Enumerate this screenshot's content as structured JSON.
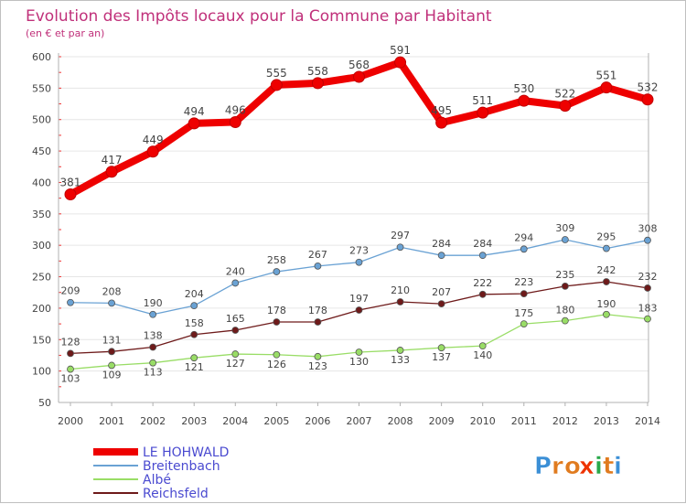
{
  "chart_data": {
    "type": "line",
    "title": "Evolution des Impôts locaux pour la Commune par Habitant",
    "subtitle": "(en € et par an)",
    "xlabel": "",
    "ylabel": "",
    "ylim": [
      50,
      600
    ],
    "yticks": [
      50,
      100,
      150,
      200,
      250,
      300,
      350,
      400,
      450,
      500,
      550,
      600
    ],
    "categories": [
      "2000",
      "2001",
      "2002",
      "2003",
      "2004",
      "2005",
      "2006",
      "2007",
      "2008",
      "2009",
      "2010",
      "2011",
      "2012",
      "2013",
      "2014"
    ],
    "series": [
      {
        "name": "LE HOHWALD",
        "color": "#ee0000",
        "values": [
          381,
          417,
          449,
          494,
          496,
          555,
          558,
          568,
          591,
          495,
          511,
          530,
          522,
          551,
          532
        ]
      },
      {
        "name": "Breitenbach",
        "color": "#6aa2d4",
        "values": [
          209,
          208,
          190,
          204,
          240,
          258,
          267,
          273,
          297,
          284,
          284,
          294,
          309,
          295,
          308
        ]
      },
      {
        "name": "Albé",
        "color": "#99dd66",
        "values": [
          103,
          109,
          113,
          121,
          127,
          126,
          123,
          130,
          133,
          137,
          140,
          175,
          180,
          190,
          183
        ]
      },
      {
        "name": "Reichsfeld",
        "color": "#6e1a1a",
        "values": [
          128,
          131,
          138,
          158,
          165,
          178,
          178,
          197,
          210,
          207,
          222,
          223,
          235,
          242,
          232
        ]
      }
    ],
    "legend_position": "bottom-left"
  },
  "brand": {
    "letters": [
      "P",
      "r",
      "o",
      "x",
      "i",
      "t",
      "i"
    ],
    "colors": [
      "#3b8fd6",
      "#e07b1f",
      "#e07b1f",
      "#ee3300",
      "#2aa84a",
      "#e07b1f",
      "#3b8fd6"
    ]
  },
  "colors": {
    "title": "#c0307a",
    "axis": "#b0b0b0",
    "grid": "#e6e6e6",
    "label": "#444444",
    "legend_text": "#4a4ad0"
  }
}
